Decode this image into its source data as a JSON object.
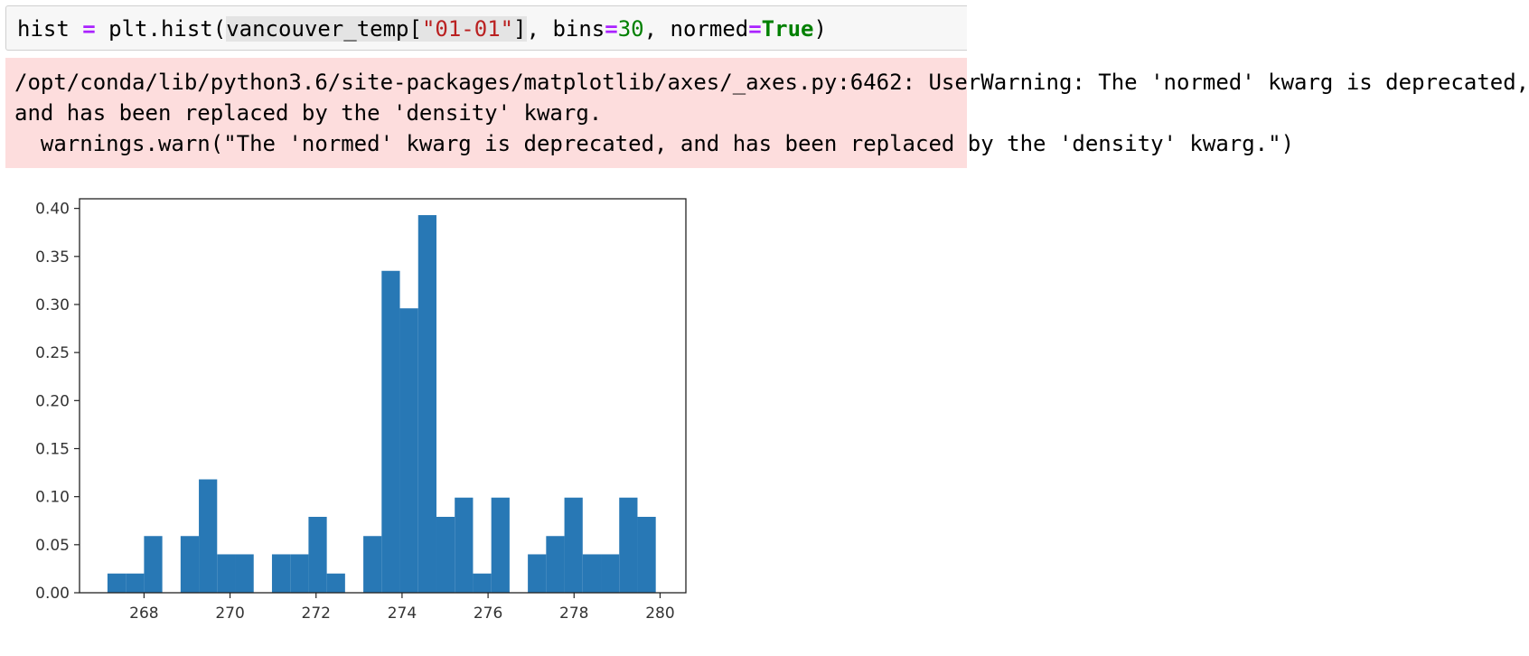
{
  "code_cell": {
    "tokens": [
      {
        "text": "hist ",
        "cls": ""
      },
      {
        "text": "=",
        "cls": "tok-op"
      },
      {
        "text": " plt.hist(",
        "cls": ""
      },
      {
        "text": "vancouver_temp[",
        "cls": "tok-hl"
      },
      {
        "text": "\"01-01\"",
        "cls": "tok-hl tok-str"
      },
      {
        "text": "]",
        "cls": "tok-hl"
      },
      {
        "text": ", bins",
        "cls": ""
      },
      {
        "text": "=",
        "cls": "tok-op"
      },
      {
        "text": "30",
        "cls": "tok-num"
      },
      {
        "text": ", normed",
        "cls": ""
      },
      {
        "text": "=",
        "cls": "tok-op"
      },
      {
        "text": "True",
        "cls": "tok-kw"
      },
      {
        "text": ")",
        "cls": ""
      }
    ]
  },
  "stderr": {
    "lines": [
      "/opt/conda/lib/python3.6/site-packages/matplotlib/axes/_axes.py:6462: UserWarning: The 'normed' kwarg is deprecated,",
      "and has been replaced by the 'density' kwarg.",
      "  warnings.warn(\"The 'normed' kwarg is deprecated, and has been replaced by the 'density' kwarg.\")"
    ]
  },
  "chart_data": {
    "type": "bar",
    "xlim": [
      266.5,
      280.6
    ],
    "ylim": [
      0,
      0.41
    ],
    "xticks": [
      268,
      270,
      272,
      274,
      276,
      278,
      280
    ],
    "yticks": [
      "0.00",
      "0.05",
      "0.10",
      "0.15",
      "0.20",
      "0.25",
      "0.30",
      "0.35",
      "0.40"
    ],
    "bin_start": 267.15,
    "bin_width": 0.425,
    "values": [
      0.02,
      0.02,
      0.059,
      0,
      0.059,
      0.118,
      0.04,
      0.04,
      0,
      0.04,
      0.04,
      0.079,
      0.02,
      0,
      0.059,
      0.335,
      0.296,
      0.393,
      0.079,
      0.099,
      0.02,
      0.099,
      0,
      0.04,
      0.059,
      0.099,
      0.04,
      0.04,
      0.099,
      0.079
    ],
    "bar_color": "#2878b5",
    "grid": false
  }
}
